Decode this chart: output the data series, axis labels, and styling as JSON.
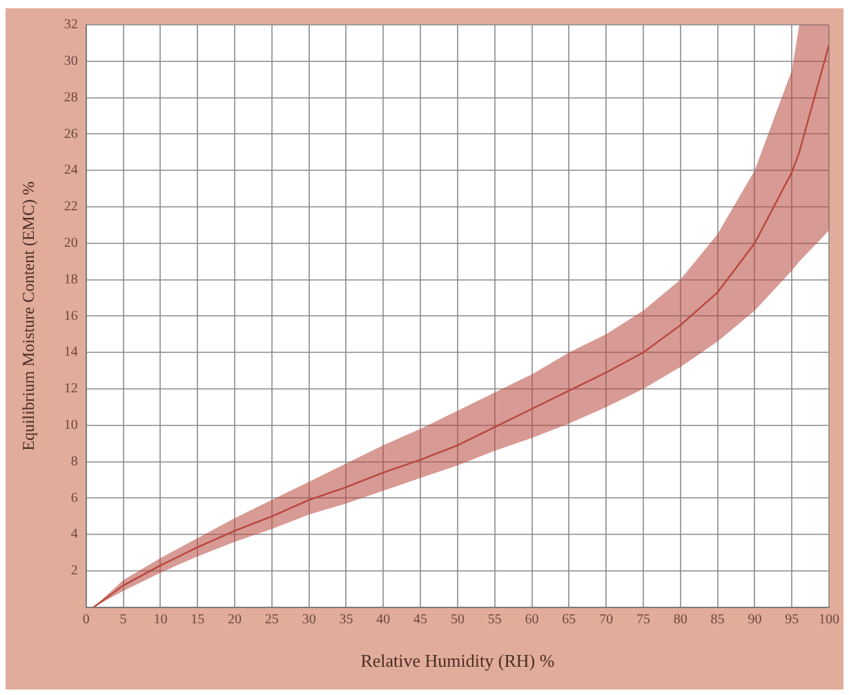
{
  "chart_data": {
    "type": "line",
    "xlabel": "Relative Humidity (RH) %",
    "ylabel": "Equilibrium Moisture Content (EMC) %",
    "x": [
      1,
      5,
      10,
      15,
      20,
      25,
      30,
      35,
      40,
      45,
      50,
      55,
      60,
      65,
      70,
      75,
      80,
      85,
      90,
      95,
      96,
      100
    ],
    "series": [
      {
        "color": "#b8473c",
        "values": [
          0,
          1.2,
          2.3,
          3.3,
          4.2,
          5.0,
          5.9,
          6.6,
          7.4,
          8.1,
          8.9,
          9.9,
          10.9,
          11.9,
          12.9,
          14.0,
          15.5,
          17.3,
          20.0,
          23.9,
          25.0,
          30.9
        ],
        "upper": [
          0,
          1.5,
          2.7,
          3.8,
          4.9,
          5.9,
          6.9,
          7.9,
          8.9,
          9.8,
          10.8,
          11.8,
          12.8,
          14.0,
          15.0,
          16.3,
          18.0,
          20.5,
          24.0,
          29.5,
          32,
          32
        ],
        "lower": [
          0,
          0.9,
          1.9,
          2.8,
          3.6,
          4.3,
          5.1,
          5.7,
          6.4,
          7.1,
          7.8,
          8.6,
          9.3,
          10.1,
          11.0,
          12.0,
          13.2,
          14.6,
          16.3,
          18.5,
          19.0,
          20.7
        ]
      }
    ],
    "xlim": [
      0,
      100
    ],
    "xticks": [
      0,
      5,
      10,
      15,
      20,
      25,
      30,
      35,
      40,
      45,
      50,
      55,
      60,
      65,
      70,
      75,
      80,
      85,
      90,
      95,
      100
    ],
    "ylim": [
      0,
      32
    ],
    "yticks": [
      {
        "value": 0,
        "label": null
      },
      2,
      4,
      6,
      8,
      10,
      12,
      14,
      16,
      18,
      20,
      22,
      24,
      26,
      28,
      30,
      32
    ],
    "grid": true,
    "legend": false,
    "marker": "none",
    "line_style": "solid"
  }
}
